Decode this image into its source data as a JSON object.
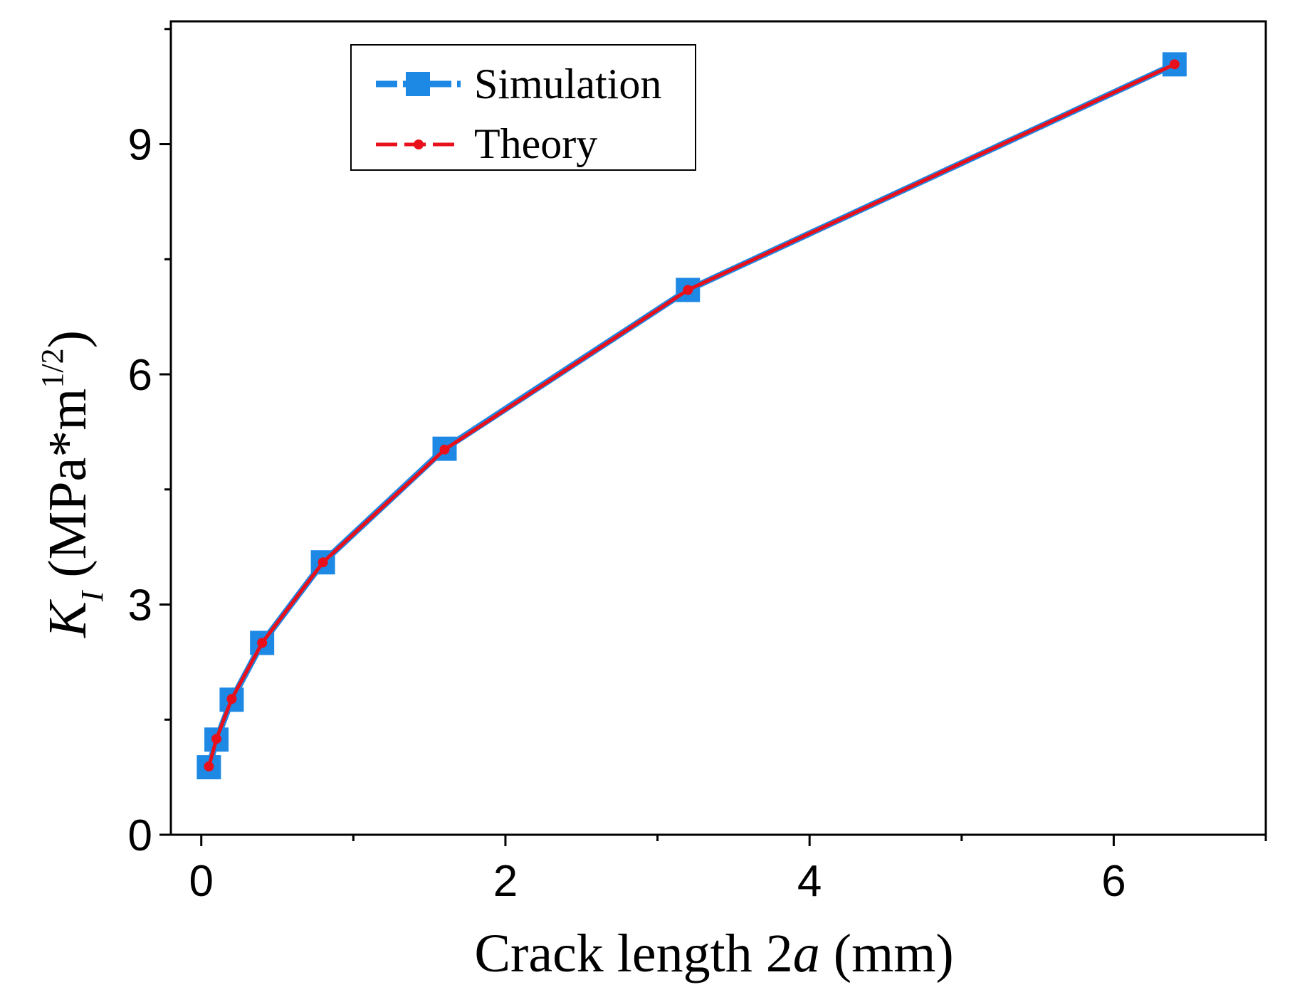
{
  "chart_data": {
    "type": "line",
    "title": "",
    "xlabel": {
      "main": "Crack length 2",
      "italic": "a",
      "unit": " (mm)"
    },
    "ylabel": {
      "symbol": "K",
      "subscript": "I",
      "unit_open": " (MPa*m",
      "superscript": "1/2",
      "unit_close": ")"
    },
    "xlim": [
      -0.2,
      7.0
    ],
    "ylim": [
      0,
      10.6
    ],
    "xticks": [
      0,
      2,
      4,
      6
    ],
    "xticks_minor": [
      1,
      3,
      5,
      7
    ],
    "yticks": [
      0,
      3,
      6,
      9
    ],
    "yticks_minor": [
      1.5,
      4.5,
      7.5,
      10.5
    ],
    "legend_position": "top-left",
    "series": [
      {
        "name": "Simulation",
        "color": "#1E88E5",
        "marker": "square",
        "line_style": "dashed",
        "x": [
          0.05,
          0.1,
          0.2,
          0.4,
          0.8,
          1.6,
          3.2,
          6.4
        ],
        "y": [
          0.88,
          1.24,
          1.76,
          2.5,
          3.55,
          5.03,
          7.1,
          10.04
        ]
      },
      {
        "name": "Theory",
        "color": "#E8101A",
        "marker": "dot",
        "line_style": "dashed",
        "x": [
          0.05,
          0.1,
          0.2,
          0.4,
          0.8,
          1.6,
          3.2,
          6.4
        ],
        "y": [
          0.89,
          1.25,
          1.77,
          2.5,
          3.55,
          5.02,
          7.1,
          10.04
        ]
      }
    ]
  }
}
